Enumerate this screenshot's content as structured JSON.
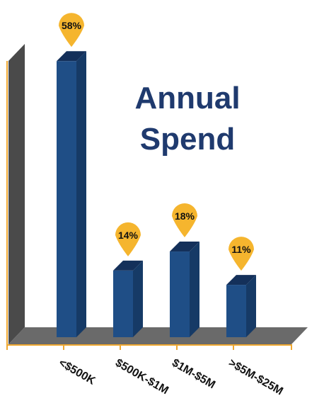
{
  "chart_data": {
    "type": "bar3d",
    "title": "Annual Spend",
    "categories": [
      "<$500K",
      "$500K-$1M",
      "$1M-$5M",
      ">$5M-$25M"
    ],
    "values": [
      58,
      14,
      18,
      11
    ],
    "value_labels": [
      "58%",
      "14%",
      "18%",
      "11%"
    ],
    "color": "#1f4e86"
  }
}
